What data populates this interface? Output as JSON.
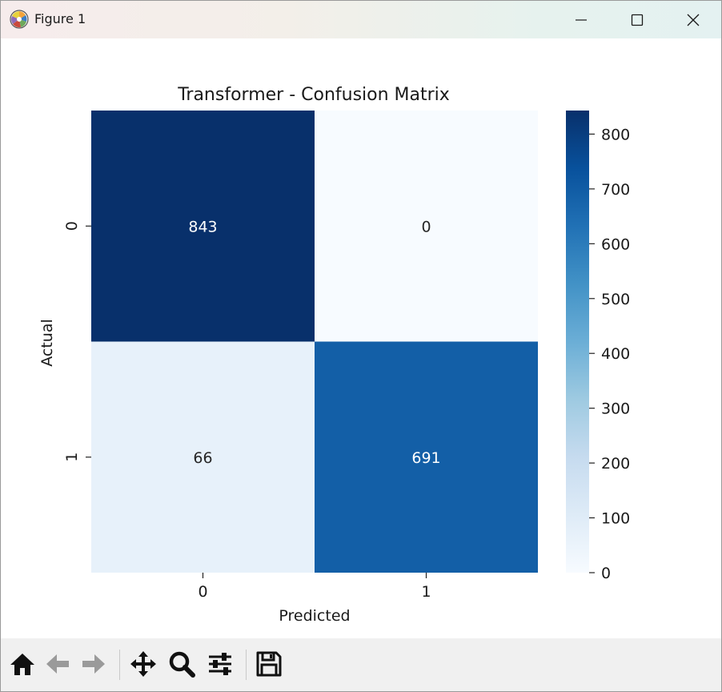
{
  "window": {
    "title": "Figure 1",
    "controls": {
      "minimize": "minimize-icon",
      "maximize": "maximize-icon",
      "close": "close-icon"
    }
  },
  "chart_data": {
    "type": "heatmap",
    "title": "Transformer - Confusion Matrix",
    "xlabel": "Predicted",
    "ylabel": "Actual",
    "x_categories": [
      "0",
      "1"
    ],
    "y_categories": [
      "0",
      "1"
    ],
    "values": [
      [
        843,
        0
      ],
      [
        66,
        691
      ]
    ],
    "colormap": "Blues",
    "colorbar": {
      "min": 0,
      "max": 843,
      "ticks": [
        0,
        100,
        200,
        300,
        400,
        500,
        600,
        700,
        800
      ]
    },
    "annotations": true
  },
  "toolbar": {
    "buttons": [
      {
        "name": "home-icon",
        "enabled": true
      },
      {
        "name": "back-arrow-icon",
        "enabled": false
      },
      {
        "name": "forward-arrow-icon",
        "enabled": false
      },
      {
        "name": "pan-icon",
        "enabled": true
      },
      {
        "name": "zoom-icon",
        "enabled": true
      },
      {
        "name": "subplots-config-icon",
        "enabled": true
      },
      {
        "name": "save-icon",
        "enabled": true
      }
    ]
  }
}
